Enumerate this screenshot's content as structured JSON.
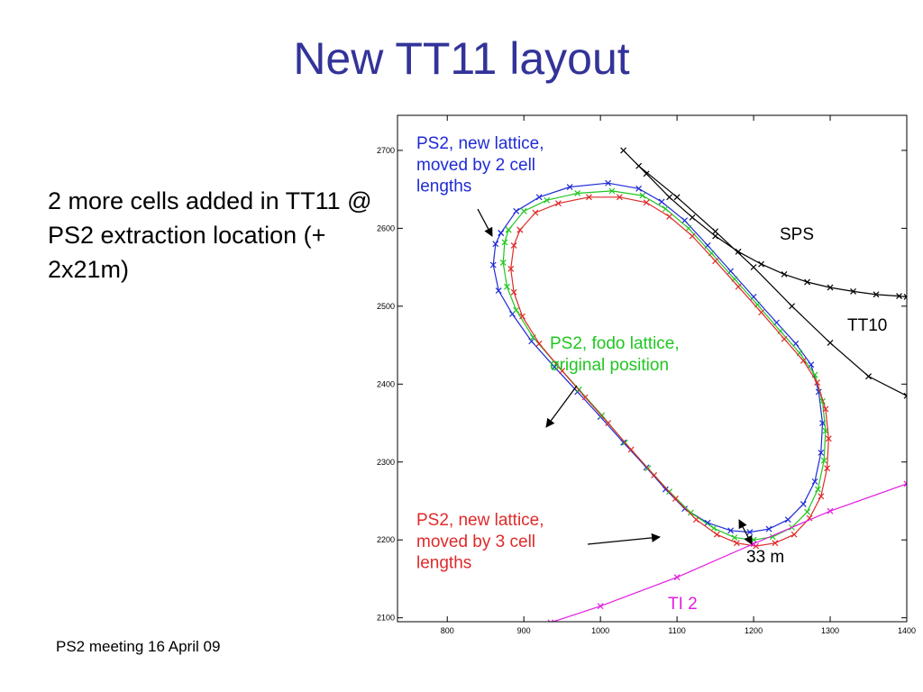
{
  "slide": {
    "title": "New TT11 layout",
    "bullet": "2 more cells added in TT11 @ PS2 extraction location (+ 2x21m)",
    "footer": "PS2 meeting 16 April 09"
  },
  "colors": {
    "title": "#333399",
    "blue": "#1f2bd6",
    "green": "#21c621",
    "red": "#e02a2a",
    "black": "#000000",
    "magenta": "#e21ce2"
  },
  "chart_data": {
    "type": "line",
    "xlim": [
      735,
      1400
    ],
    "ylim": [
      2095,
      2745
    ],
    "xticks": [
      800,
      900,
      1000,
      1100,
      1200,
      1300,
      1400
    ],
    "yticks": [
      2100,
      2200,
      2300,
      2400,
      2500,
      2600,
      2700
    ],
    "grid": false,
    "series": [
      {
        "key": "blue",
        "name": "PS2, new lattice, moved by 2 cell lengths",
        "color": "#1f2bd6",
        "x": [
          870,
          890,
          920,
          960,
          1010,
          1050,
          1080,
          1110,
          1140,
          1170,
          1200,
          1230,
          1255,
          1275,
          1285,
          1290,
          1288,
          1280,
          1265,
          1245,
          1220,
          1195,
          1170,
          1140,
          1110,
          1085,
          1060,
          1030,
          1000,
          970,
          940,
          910,
          885,
          867,
          860,
          863,
          870
        ],
        "y": [
          2594,
          2622,
          2640,
          2653,
          2658,
          2651,
          2634,
          2610,
          2578,
          2545,
          2512,
          2479,
          2452,
          2425,
          2390,
          2350,
          2312,
          2275,
          2246,
          2226,
          2214,
          2210,
          2212,
          2222,
          2240,
          2265,
          2293,
          2325,
          2358,
          2390,
          2422,
          2455,
          2490,
          2520,
          2553,
          2580,
          2594
        ]
      },
      {
        "key": "green",
        "name": "PS2, fodo lattice, original position",
        "color": "#21c621",
        "x": [
          880,
          900,
          930,
          970,
          1015,
          1055,
          1085,
          1115,
          1145,
          1175,
          1205,
          1235,
          1260,
          1280,
          1290,
          1294,
          1292,
          1284,
          1270,
          1250,
          1225,
          1200,
          1175,
          1148,
          1118,
          1090,
          1062,
          1032,
          1002,
          972,
          942,
          912,
          890,
          878,
          873,
          875,
          880
        ],
        "y": [
          2598,
          2622,
          2636,
          2645,
          2648,
          2642,
          2625,
          2600,
          2568,
          2535,
          2502,
          2468,
          2440,
          2412,
          2378,
          2340,
          2302,
          2265,
          2236,
          2216,
          2204,
          2200,
          2203,
          2215,
          2235,
          2262,
          2292,
          2325,
          2360,
          2393,
          2426,
          2460,
          2495,
          2525,
          2556,
          2582,
          2598
        ]
      },
      {
        "key": "red",
        "name": "PS2, new lattice, moved by 3 cell lengths",
        "color": "#e02a2a",
        "x": [
          895,
          915,
          945,
          985,
          1025,
          1060,
          1090,
          1120,
          1150,
          1180,
          1210,
          1240,
          1265,
          1283,
          1294,
          1298,
          1296,
          1288,
          1273,
          1253,
          1228,
          1203,
          1178,
          1152,
          1125,
          1098,
          1070,
          1040,
          1010,
          980,
          950,
          920,
          898,
          887,
          883,
          887,
          895
        ],
        "y": [
          2598,
          2620,
          2632,
          2640,
          2640,
          2633,
          2615,
          2590,
          2558,
          2525,
          2492,
          2458,
          2430,
          2402,
          2368,
          2330,
          2292,
          2256,
          2228,
          2207,
          2196,
          2192,
          2196,
          2207,
          2226,
          2253,
          2283,
          2316,
          2350,
          2383,
          2417,
          2452,
          2487,
          2518,
          2548,
          2578,
          2598
        ]
      },
      {
        "key": "sps",
        "name": "SPS",
        "color": "#000000",
        "x": [
          1030,
          1060,
          1090,
          1120,
          1150,
          1180,
          1210,
          1240,
          1270,
          1300,
          1330,
          1360,
          1390,
          1400
        ],
        "y": [
          2700,
          2670,
          2640,
          2614,
          2590,
          2570,
          2554,
          2541,
          2531,
          2524,
          2519,
          2515,
          2513,
          2512
        ]
      },
      {
        "key": "tt10",
        "name": "TT10",
        "color": "#000000",
        "x": [
          1050,
          1100,
          1150,
          1200,
          1250,
          1300,
          1350,
          1400
        ],
        "y": [
          2680,
          2640,
          2596,
          2550,
          2500,
          2453,
          2410,
          2385
        ]
      },
      {
        "key": "ti2",
        "name": "TI 2",
        "color": "#e21ce2",
        "x": [
          935,
          1000,
          1100,
          1200,
          1300,
          1400
        ],
        "y": [
          2094,
          2115,
          2152,
          2195,
          2237,
          2272
        ]
      }
    ],
    "annotations": [
      {
        "key": "blue",
        "lines": [
          "PS2, new lattice,",
          "moved by 2 cell",
          "lengths"
        ]
      },
      {
        "key": "green",
        "lines": [
          "PS2, fodo lattice,",
          "original position"
        ]
      },
      {
        "key": "red",
        "lines": [
          "PS2, new lattice,",
          "moved by 3 cell",
          "lengths"
        ]
      },
      {
        "key": "sps",
        "lines": [
          "SPS"
        ]
      },
      {
        "key": "tt10",
        "lines": [
          "TT10"
        ]
      },
      {
        "key": "ti2",
        "lines": [
          "TI 2"
        ]
      },
      {
        "key": "dist",
        "lines": [
          "33 m"
        ]
      }
    ]
  }
}
